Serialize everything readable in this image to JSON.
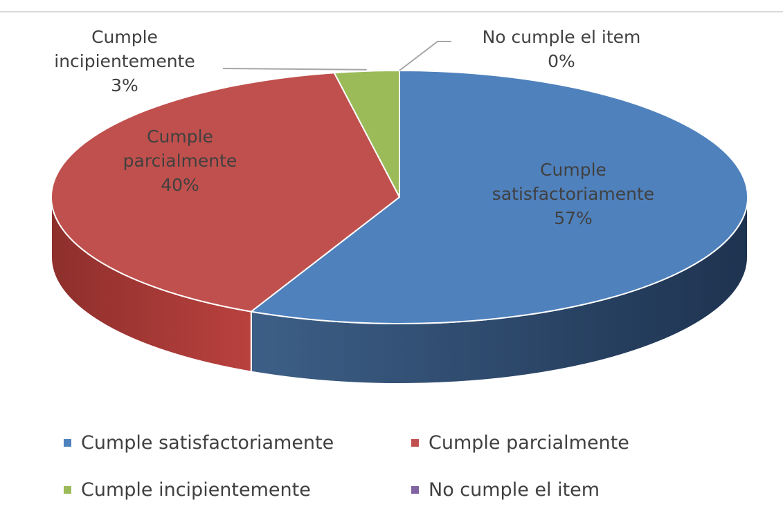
{
  "chart_data": {
    "type": "pie",
    "title": "",
    "slices": [
      {
        "name": "Cumple satisfactoriamente",
        "label_line1": "Cumple",
        "label_line2": "satisfactoriamente",
        "percent_label": "57%",
        "value": 57,
        "color": "#4F81BD"
      },
      {
        "name": "Cumple parcialmente",
        "label_line1": "Cumple",
        "label_line2": "parcialmente",
        "percent_label": "40%",
        "value": 40,
        "color": "#C0504D"
      },
      {
        "name": "Cumple incipientemente",
        "label_line1": "Cumple",
        "label_line2": "incipientemente",
        "percent_label": "3%",
        "value": 3,
        "color": "#9BBB59"
      },
      {
        "name": "No cumple el item",
        "label_line1": "No cumple el item",
        "label_line2": "",
        "percent_label": "0%",
        "value": 0,
        "color": "#8064A2"
      }
    ],
    "legend_position": "bottom",
    "style": "3d"
  }
}
